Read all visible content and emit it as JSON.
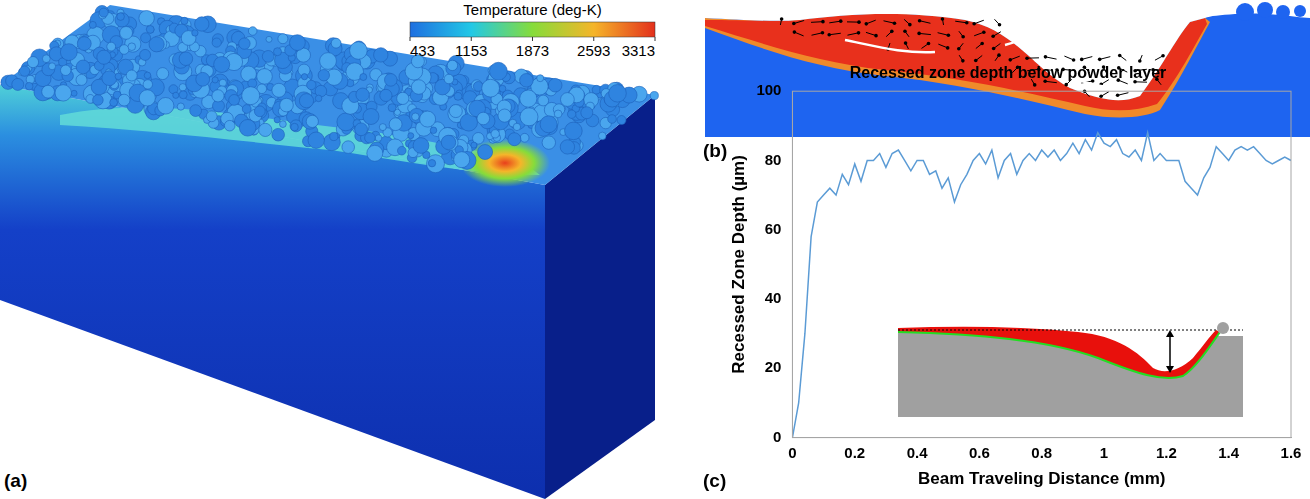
{
  "panels": [
    {
      "label": "(a)",
      "colorbar": {
        "title": "Temperature (deg-K)",
        "range": [
          433,
          3313
        ],
        "ticks": [
          433,
          1153,
          1873,
          2593,
          3313
        ]
      }
    },
    {
      "label": "(b)"
    },
    {
      "label": "(c)"
    }
  ],
  "chart_data": {
    "type": "line",
    "title": "Recessed zone depth below powder layer",
    "x_label": "Beam Traveling Distance (mm)",
    "y_label": "Recessed Zone Depth (µm)",
    "x": [
      0,
      0.02,
      0.04,
      0.06,
      0.08,
      0.1,
      0.12,
      0.14,
      0.16,
      0.18,
      0.2,
      0.22,
      0.24,
      0.26,
      0.28,
      0.3,
      0.32,
      0.34,
      0.36,
      0.38,
      0.4,
      0.42,
      0.44,
      0.46,
      0.48,
      0.5,
      0.52,
      0.54,
      0.56,
      0.58,
      0.6,
      0.62,
      0.64,
      0.66,
      0.68,
      0.7,
      0.72,
      0.74,
      0.76,
      0.78,
      0.8,
      0.82,
      0.84,
      0.86,
      0.88,
      0.9,
      0.92,
      0.94,
      0.96,
      0.98,
      1.0,
      1.02,
      1.04,
      1.06,
      1.08,
      1.1,
      1.12,
      1.14,
      1.16,
      1.18,
      1.2,
      1.22,
      1.24,
      1.26,
      1.28,
      1.3,
      1.32,
      1.34,
      1.36,
      1.38,
      1.4,
      1.42,
      1.44,
      1.46,
      1.48,
      1.5,
      1.52,
      1.54,
      1.56,
      1.58,
      1.6
    ],
    "series": [
      {
        "name": "Recessed zone depth",
        "color": "#5b9bd5",
        "values": [
          0,
          10,
          30,
          58,
          68,
          70,
          72,
          70,
          76,
          73,
          79,
          74,
          80,
          80,
          82,
          78,
          82,
          83,
          80,
          77,
          80,
          80,
          76,
          77,
          72,
          75,
          68,
          73,
          76,
          80,
          82,
          79,
          83,
          75,
          80,
          82,
          76,
          80,
          82,
          80,
          83,
          81,
          83,
          80,
          82,
          85,
          82,
          86,
          83,
          88,
          85,
          84,
          86,
          82,
          81,
          83,
          80,
          88,
          80,
          82,
          80,
          80,
          80,
          74,
          72,
          70,
          75,
          78,
          84,
          82,
          80,
          83,
          84,
          83,
          84,
          82,
          80,
          79,
          80,
          81,
          80
        ]
      }
    ],
    "xlim": [
      0,
      1.6
    ],
    "xticks": [
      0,
      0.2,
      0.4,
      0.6,
      0.8,
      1,
      1.2,
      1.4,
      1.6
    ],
    "ylim": [
      0,
      100
    ],
    "yticks": [
      0,
      20,
      40,
      60,
      80,
      100
    ],
    "grid": false
  }
}
